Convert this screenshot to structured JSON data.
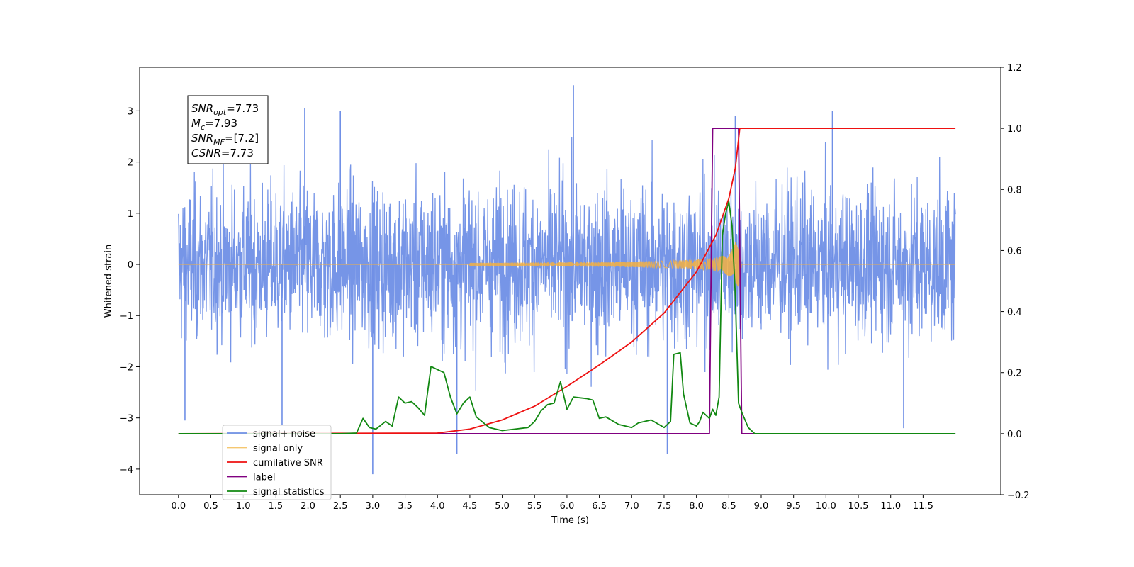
{
  "chart_data": {
    "type": "line",
    "xlabel": "Time (s)",
    "ylabel": "Whitened strain",
    "xlim": [
      -0.6,
      12.7
    ],
    "ylim": [
      -4.5,
      3.85
    ],
    "ylim_right": [
      -0.2,
      1.2
    ],
    "x_ticks": [
      0.0,
      0.5,
      1.0,
      1.5,
      2.0,
      2.5,
      3.0,
      3.5,
      4.0,
      4.5,
      5.0,
      5.5,
      6.0,
      6.5,
      7.0,
      7.5,
      8.0,
      8.5,
      9.0,
      9.5,
      10.0,
      10.5,
      11.0,
      11.5
    ],
    "x_tick_labels": [
      "0.0",
      "0.5",
      "1.0",
      "1.5",
      "2.0",
      "2.5",
      "3.0",
      "3.5",
      "4.0",
      "4.5",
      "5.0",
      "5.5",
      "6.0",
      "6.5",
      "7.0",
      "7.5",
      "8.0",
      "8.5",
      "9.0",
      "9.5",
      "10.0",
      "10.5",
      "11.0",
      "11.5"
    ],
    "y_ticks": [
      3,
      2,
      1,
      0,
      -1,
      -2,
      -3,
      -4
    ],
    "y_tick_labels": [
      "3",
      "2",
      "1",
      "0",
      "−1",
      "−2",
      "−3",
      "−4"
    ],
    "y_right_ticks": [
      1.2,
      1.0,
      0.8,
      0.6,
      0.4,
      0.2,
      0.0,
      -0.2
    ],
    "y_right_tick_labels": [
      "1.2",
      "1.0",
      "0.8",
      "0.6",
      "0.4",
      "0.2",
      "0.0",
      "−0.2"
    ],
    "grid": false,
    "legend_position": "lower-left",
    "series": [
      {
        "name": "signal+ noise",
        "axis": "left",
        "color": "#6f8fe6",
        "envelope": {
          "x": [
            0,
            8.6,
            8.7,
            12
          ],
          "upper": [
            2.2,
            2.4,
            2.2,
            2.2
          ],
          "lower": [
            -2.2,
            -2.4,
            -2.2,
            -2.2
          ]
        },
        "spikes": [
          {
            "x": 0.1,
            "y": -3.05
          },
          {
            "x": 1.6,
            "y": -3.15
          },
          {
            "x": 1.95,
            "y": 3.05
          },
          {
            "x": 2.5,
            "y": 3.0
          },
          {
            "x": 3.0,
            "y": -4.1
          },
          {
            "x": 4.3,
            "y": -3.7
          },
          {
            "x": 6.1,
            "y": 3.5
          },
          {
            "x": 7.55,
            "y": -3.7
          },
          {
            "x": 8.6,
            "y": 2.9
          },
          {
            "x": 11.2,
            "y": -3.2
          },
          {
            "x": 10.1,
            "y": 3.0
          }
        ]
      },
      {
        "name": "signal only",
        "axis": "left",
        "color": "#f5b041",
        "chirp": {
          "start": 4.5,
          "merger": 8.65,
          "end": 8.7,
          "peak_amp": 0.45
        }
      },
      {
        "name": "cumilative SNR",
        "axis": "right",
        "color": "#ee1111",
        "x": [
          0,
          4.0,
          4.5,
          5.0,
          5.5,
          6.0,
          6.5,
          7.0,
          7.5,
          8.0,
          8.3,
          8.5,
          8.6,
          8.67,
          12
        ],
        "y": [
          0.0,
          0.002,
          0.015,
          0.045,
          0.09,
          0.155,
          0.225,
          0.3,
          0.395,
          0.53,
          0.65,
          0.77,
          0.87,
          1.0,
          1.0
        ]
      },
      {
        "name": "label",
        "axis": "right",
        "color": "#800080",
        "x": [
          0,
          8.2,
          8.25,
          8.65,
          8.7,
          12
        ],
        "y": [
          0,
          0,
          1,
          1,
          0,
          0
        ]
      },
      {
        "name": "signal statistics",
        "axis": "right",
        "color": "#118811",
        "x": [
          0,
          0.5,
          1.0,
          1.5,
          2.0,
          2.5,
          2.75,
          2.85,
          2.95,
          3.05,
          3.2,
          3.3,
          3.4,
          3.5,
          3.6,
          3.7,
          3.8,
          3.9,
          4.0,
          4.1,
          4.2,
          4.3,
          4.4,
          4.5,
          4.6,
          4.8,
          5.0,
          5.2,
          5.4,
          5.5,
          5.6,
          5.7,
          5.8,
          5.9,
          6.0,
          6.1,
          6.3,
          6.4,
          6.5,
          6.6,
          6.8,
          7.0,
          7.1,
          7.3,
          7.5,
          7.6,
          7.65,
          7.75,
          7.8,
          7.9,
          8.0,
          8.05,
          8.1,
          8.15,
          8.2,
          8.25,
          8.3,
          8.35,
          8.4,
          8.45,
          8.5,
          8.55,
          8.6,
          8.65,
          8.7,
          8.8,
          8.9,
          9.1,
          12
        ],
        "y": [
          0,
          0,
          0,
          0,
          0,
          0,
          0.002,
          0.05,
          0.02,
          0.015,
          0.04,
          0.025,
          0.12,
          0.1,
          0.105,
          0.085,
          0.06,
          0.22,
          0.21,
          0.2,
          0.12,
          0.065,
          0.1,
          0.12,
          0.055,
          0.02,
          0.01,
          0.015,
          0.02,
          0.04,
          0.075,
          0.095,
          0.1,
          0.17,
          0.08,
          0.12,
          0.115,
          0.11,
          0.05,
          0.055,
          0.03,
          0.02,
          0.035,
          0.045,
          0.02,
          0.04,
          0.26,
          0.265,
          0.13,
          0.035,
          0.025,
          0.04,
          0.07,
          0.06,
          0.05,
          0.08,
          0.06,
          0.12,
          0.65,
          0.72,
          0.76,
          0.68,
          0.45,
          0.1,
          0.07,
          0.02,
          0,
          0,
          0
        ]
      }
    ],
    "annotation_lines": [
      {
        "base": "SNR",
        "sub": "opt",
        "value": "=7.73"
      },
      {
        "base": "M",
        "sub": "c",
        "value": "=7.93"
      },
      {
        "base": "SNR",
        "sub": "MF",
        "value": "=[7.2]"
      },
      {
        "base": "CSNR",
        "sub": "",
        "value": "=7.73"
      }
    ],
    "legend": [
      {
        "label": "signal+ noise",
        "color": "#6f8fe6"
      },
      {
        "label": "signal only",
        "color": "#f5c770"
      },
      {
        "label": "cumilative SNR",
        "color": "#ee1111"
      },
      {
        "label": "label",
        "color": "#800080"
      },
      {
        "label": "signal statistics",
        "color": "#118811"
      }
    ]
  }
}
